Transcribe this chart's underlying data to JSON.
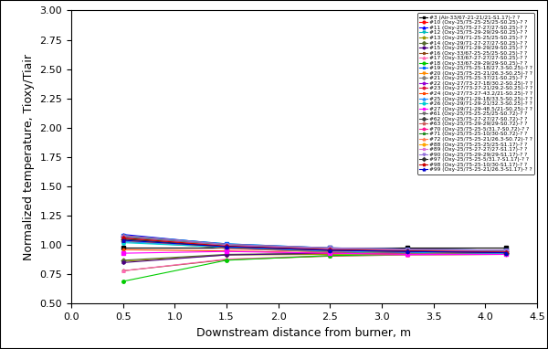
{
  "xlabel": "Downstream distance from burner, m",
  "ylabel": "Normalized temperature, Tioxy/Tiair",
  "xlim": [
    0.0,
    4.5
  ],
  "ylim": [
    0.5,
    3.0
  ],
  "yticks": [
    0.5,
    0.75,
    1.0,
    1.25,
    1.5,
    1.75,
    2.0,
    2.25,
    2.5,
    2.75,
    3.0
  ],
  "xticks": [
    0.0,
    0.5,
    1.0,
    1.5,
    2.0,
    2.5,
    3.0,
    3.5,
    4.0,
    4.5
  ],
  "x_points": [
    0.5,
    1.5,
    2.5,
    3.25,
    4.2
  ],
  "series": [
    {
      "label": "#3 (Air-33/67-21-21/21-S1.17)-? ?",
      "color": "#000000",
      "marker": "s",
      "y": [
        0.98,
        0.98,
        0.98,
        0.98,
        0.98
      ]
    },
    {
      "label": "#10 (Oxy-25/75-25-25/25-S0.25)-? ?",
      "color": "#ff0000",
      "marker": "o",
      "y": [
        1.06,
        0.97,
        0.94,
        0.93,
        0.92
      ]
    },
    {
      "label": "#11 (Oxy-25/75-27-27/27-S0.25)-? ?",
      "color": "#0000ff",
      "marker": "^",
      "y": [
        1.09,
        1.005,
        0.965,
        0.955,
        0.945
      ]
    },
    {
      "label": "#12 (Oxy-25/75-29-29/29-S0.25)-? ?",
      "color": "#00bbbb",
      "marker": "v",
      "y": [
        1.08,
        1.01,
        0.975,
        0.965,
        0.955
      ]
    },
    {
      "label": "#13 (Oxy-29/71-25-25/25-S0.25)-? ?",
      "color": "#999900",
      "marker": "p",
      "y": [
        0.86,
        0.915,
        0.92,
        0.925,
        0.93
      ]
    },
    {
      "label": "#14 (Oxy-29/71-27-27/27-S0.25)-? ?",
      "color": "#556b2f",
      "marker": "D",
      "y": [
        0.87,
        0.92,
        0.93,
        0.93,
        0.935
      ]
    },
    {
      "label": "#15 (Oxy-29/71-29-29/29-S0.25)-? ?",
      "color": "#4b0082",
      "marker": "h",
      "y": [
        0.85,
        0.915,
        0.93,
        0.935,
        0.94
      ]
    },
    {
      "label": "#16 (Oxy-33/67-25-25/25-S0.25)-? ?",
      "color": "#8b4513",
      "marker": "*",
      "y": [
        0.78,
        0.875,
        0.905,
        0.915,
        0.92
      ]
    },
    {
      "label": "#17 (Oxy-33/67-27-27/27-S0.25)-? ?",
      "color": "#ff69b4",
      "marker": "^",
      "y": [
        0.78,
        0.88,
        0.91,
        0.915,
        0.92
      ]
    },
    {
      "label": "#18 (Oxy-33/67-29-29/29-S0.25)-? ?",
      "color": "#00cc00",
      "marker": "o",
      "y": [
        0.69,
        0.87,
        0.91,
        0.92,
        0.93
      ]
    },
    {
      "label": "#19 (Oxy-25/75-25-18/27.3-S0.25)-? ?",
      "color": "#0066ff",
      "marker": "s",
      "y": [
        1.08,
        1.01,
        0.975,
        0.965,
        0.955
      ]
    },
    {
      "label": "#20 (Oxy-25/75-25-21/26.3-S0.25)-? ?",
      "color": "#ff8c00",
      "marker": "v",
      "y": [
        1.06,
        0.99,
        0.96,
        0.95,
        0.94
      ]
    },
    {
      "label": "#21 (Oxy-25/75-25-37/21-S0.25)-? ?",
      "color": "#808080",
      "marker": "D",
      "y": [
        1.03,
        0.975,
        0.94,
        0.93,
        0.92
      ]
    },
    {
      "label": "#22 (Oxy-27/73-27-18/30.2-S0.25)-? ?",
      "color": "#9400d3",
      "marker": "p",
      "y": [
        1.04,
        0.98,
        0.95,
        0.94,
        0.93
      ]
    },
    {
      "label": "#23 (Oxy-27/73-27-21/29.2-S0.25)-? ?",
      "color": "#dc143c",
      "marker": "h",
      "y": [
        1.05,
        0.985,
        0.955,
        0.945,
        0.935
      ]
    },
    {
      "label": "#24 (Oxy-27/73-27-43.2/21-S0.25)-? ?",
      "color": "#ff4500",
      "marker": "*",
      "y": [
        0.96,
        0.95,
        0.93,
        0.92,
        0.92
      ]
    },
    {
      "label": "#25 (Oxy-29/71-29-18/33.5-S0.25)-? ?",
      "color": "#1e90ff",
      "marker": "^",
      "y": [
        1.03,
        0.98,
        0.955,
        0.94,
        0.93
      ]
    },
    {
      "label": "#26 (Oxy-29/71-29-21/32.3-S0.25)-? ?",
      "color": "#00ced1",
      "marker": "o",
      "y": [
        1.02,
        0.98,
        0.95,
        0.94,
        0.93
      ]
    },
    {
      "label": "#27 (Oxy-29/71-29-48.5/21-S0.25)-? ?",
      "color": "#ff00ff",
      "marker": "s",
      "y": [
        0.93,
        0.945,
        0.93,
        0.92,
        0.92
      ]
    },
    {
      "label": "#61 (Oxy-25/75-25-25/25-S0.72)-? ?",
      "color": "#696969",
      "marker": "v",
      "y": [
        1.05,
        0.985,
        0.955,
        0.945,
        0.935
      ]
    },
    {
      "label": "#62 (Oxy-25/75-27-27/27-S0.72)-? ?",
      "color": "#3d3d3d",
      "marker": "D",
      "y": [
        1.07,
        0.995,
        0.965,
        0.955,
        0.945
      ]
    },
    {
      "label": "#63 (Oxy-25/75-29-29/29-S0.72)-? ?",
      "color": "#cd5c5c",
      "marker": "p",
      "y": [
        1.08,
        1.005,
        0.975,
        0.965,
        0.955
      ]
    },
    {
      "label": "#70 (Oxy-25/75-25-5/31.7-S0.72)-? ?",
      "color": "#ff1493",
      "marker": "h",
      "y": [
        1.06,
        0.995,
        0.965,
        0.955,
        0.945
      ]
    },
    {
      "label": "#71 (Oxy-25/75-25-10/30-S0.72)-? ?",
      "color": "#228b22",
      "marker": "*",
      "y": [
        1.07,
        1.0,
        0.965,
        0.955,
        0.945
      ]
    },
    {
      "label": "#72 (Oxy-25/75-25-21/26.3-S0.72)-? ?",
      "color": "#ff7f50",
      "marker": "^",
      "y": [
        1.04,
        0.985,
        0.955,
        0.945,
        0.935
      ]
    },
    {
      "label": "#88 (Oxy-25/75-25-25/25-S1.17)-? ?",
      "color": "#ffa500",
      "marker": "o",
      "y": [
        1.04,
        0.985,
        0.955,
        0.945,
        0.935
      ]
    },
    {
      "label": "#89 (Oxy-25/75-27-27/27-S1.17)-? ?",
      "color": "#da70d6",
      "marker": "s",
      "y": [
        1.06,
        0.995,
        0.965,
        0.955,
        0.945
      ]
    },
    {
      "label": "#90 (Oxy-25/75-29-29/29-S1.17)-? ?",
      "color": "#9370db",
      "marker": "v",
      "y": [
        1.075,
        1.005,
        0.975,
        0.965,
        0.955
      ]
    },
    {
      "label": "#97 (Oxy-25/75-25-5/31.7-S1.17)-? ?",
      "color": "#2e2e2e",
      "marker": "D",
      "y": [
        1.05,
        0.985,
        0.955,
        0.945,
        0.935
      ]
    },
    {
      "label": "#98 (Oxy-25/75-25-10/30-S1.17)-? ?",
      "color": "#cc0000",
      "marker": "p",
      "y": [
        1.06,
        0.99,
        0.96,
        0.95,
        0.94
      ]
    },
    {
      "label": "#99 (Oxy-25/75-25-21/26.3-S1.17)-? ?",
      "color": "#0000cc",
      "marker": "^",
      "y": [
        1.04,
        0.985,
        0.955,
        0.945,
        0.935
      ]
    }
  ],
  "figsize": [
    6.0,
    3.82
  ],
  "dpi": 100,
  "legend_fontsize": 4.2,
  "axis_fontsize": 9,
  "tick_fontsize": 8,
  "outer_border": true
}
